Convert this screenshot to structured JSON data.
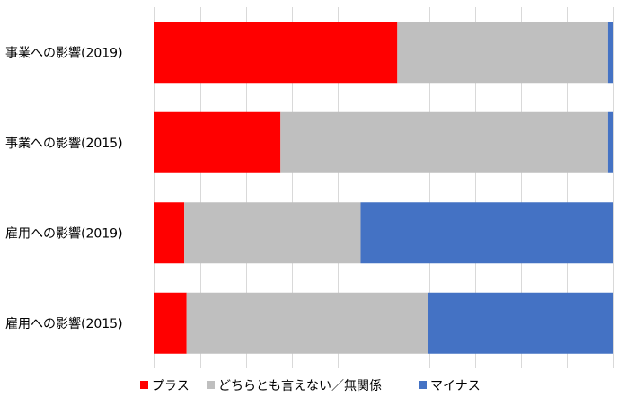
{
  "chart_data": {
    "type": "bar",
    "orientation": "horizontal",
    "stacked": "100%",
    "categories": [
      "事業への影響(2019)",
      "事業への影響(2015)",
      "雇用への影響(2019)",
      "雇用への影響(2015)"
    ],
    "series": [
      {
        "name": "プラス",
        "color": "#ff0000",
        "values": [
          53.0,
          27.5,
          6.5,
          7.0
        ]
      },
      {
        "name": "どちらとも言えない／無関係",
        "color": "#bfbfbf",
        "values": [
          46.0,
          71.5,
          38.5,
          52.8
        ]
      },
      {
        "name": "マイナス",
        "color": "#4472c4",
        "values": [
          1.0,
          1.0,
          55.0,
          40.2
        ]
      }
    ],
    "xlim": [
      0,
      100
    ],
    "grid": true,
    "legend_position": "bottom"
  }
}
